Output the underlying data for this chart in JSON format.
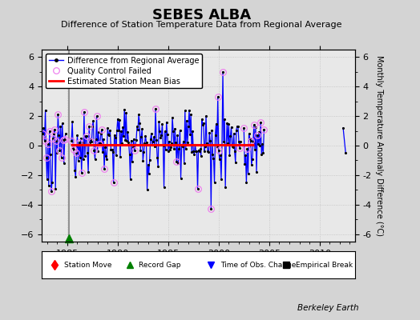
{
  "title": "SEBES ALBA",
  "subtitle": "Difference of Station Temperature Data from Regional Average",
  "ylabel": "Monthly Temperature Anomaly Difference (°C)",
  "xlabel_bottom": "Berkeley Earth",
  "xlim": [
    1982.5,
    2013.5
  ],
  "ylim": [
    -6.5,
    6.5
  ],
  "yticks": [
    -6,
    -4,
    -2,
    0,
    2,
    4,
    6
  ],
  "xticks": [
    1985,
    1990,
    1995,
    2000,
    2005,
    2010
  ],
  "bias_value": 0.05,
  "bias_start": 1985.3,
  "bias_end": 2003.5,
  "record_gap_x": 1985.15,
  "vertical_line_x": 1985.15,
  "bg_color": "#d4d4d4",
  "plot_bg_color": "#e8e8e8"
}
